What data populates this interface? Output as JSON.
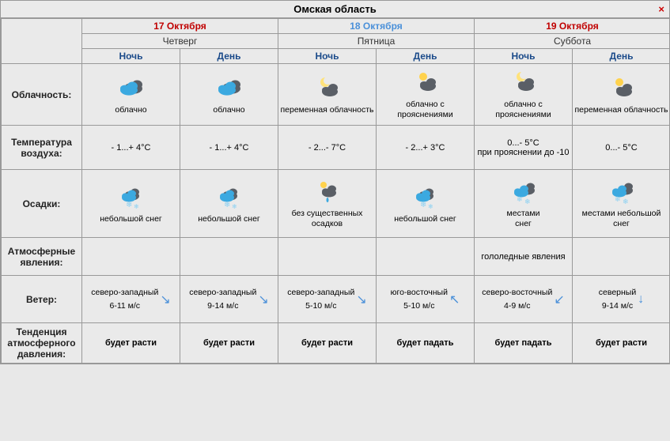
{
  "title": "Омская область",
  "close_symbol": "×",
  "days": [
    {
      "date": "17 Октября",
      "date_color": "#c00000",
      "dayname": "Четверг"
    },
    {
      "date": "18 Октября",
      "date_color": "#4a90d9",
      "dayname": "Пятница"
    },
    {
      "date": "19 Октября",
      "date_color": "#c00000",
      "dayname": "Суббота"
    }
  ],
  "period_labels": [
    "Ночь",
    "День",
    "Ночь",
    "День",
    "Ночь",
    "День"
  ],
  "rows": {
    "cloudiness": {
      "label": "Облачность:",
      "cells": [
        {
          "icon": "cloud-blue-dark",
          "text": "облачно"
        },
        {
          "icon": "cloud-blue-dark",
          "text": "облачно"
        },
        {
          "icon": "moon-cloud",
          "text": "переменная облачность"
        },
        {
          "icon": "sun-cloud-dark",
          "text": "облачно с прояснениями"
        },
        {
          "icon": "moon-cloud",
          "text": "облачно с прояснениями"
        },
        {
          "icon": "sun-cloud-dark",
          "text": "переменная облачность"
        }
      ]
    },
    "temperature": {
      "label": "Температура воздуха:",
      "cells": [
        {
          "text": "- 1...+ 4°C"
        },
        {
          "text": "- 1...+ 4°C"
        },
        {
          "text": "- 2...- 7°C"
        },
        {
          "text": "- 2...+ 3°C"
        },
        {
          "text": "0...- 5°C\nпри прояснении до -10"
        },
        {
          "text": "0...- 5°C"
        }
      ]
    },
    "precipitation": {
      "label": "Осадки:",
      "cells": [
        {
          "icon": "cloud-snow",
          "text": "небольшой снег"
        },
        {
          "icon": "cloud-snow",
          "text": "небольшой снег"
        },
        {
          "icon": "sun-cloud-rain",
          "text": "без существенных осадков"
        },
        {
          "icon": "cloud-snow",
          "text": "небольшой снег"
        },
        {
          "icon": "clouds-snow",
          "text": "местами\nснег"
        },
        {
          "icon": "clouds-snow",
          "text": "местами небольшой снег"
        }
      ]
    },
    "phenomena": {
      "label": "Атмосферные явления:",
      "cells": [
        {
          "text": ""
        },
        {
          "text": ""
        },
        {
          "text": ""
        },
        {
          "text": ""
        },
        {
          "text": "гололедные явления"
        },
        {
          "text": ""
        }
      ]
    },
    "wind": {
      "label": "Ветер:",
      "cells": [
        {
          "dir": "северо-западный",
          "speed": "6-11 м/с",
          "arrow": "↘"
        },
        {
          "dir": "северо-западный",
          "speed": "9-14 м/с",
          "arrow": "↘"
        },
        {
          "dir": "северо-западный",
          "speed": "5-10 м/с",
          "arrow": "↘"
        },
        {
          "dir": "юго-восточный",
          "speed": "5-10 м/с",
          "arrow": "↖"
        },
        {
          "dir": "северо-восточный",
          "speed": "4-9 м/с",
          "arrow": "↙"
        },
        {
          "dir": "северный",
          "speed": "9-14 м/с",
          "arrow": "↓"
        }
      ]
    },
    "pressure": {
      "label": "Тенденция атмосферного давления:",
      "cells": [
        {
          "text": "будет расти"
        },
        {
          "text": "будет расти"
        },
        {
          "text": "будет расти"
        },
        {
          "text": "будет падать"
        },
        {
          "text": "будет падать"
        },
        {
          "text": "будет расти"
        }
      ]
    }
  },
  "icons": {
    "cloud": {
      "blue": "#3ba9e0",
      "dark": "#5a5f66",
      "white": "#dcdde0",
      "drop": "#3ba9e0",
      "sun": "#ffd24d",
      "moon": "#ffe27a",
      "snow": "#8cd1f2"
    }
  }
}
